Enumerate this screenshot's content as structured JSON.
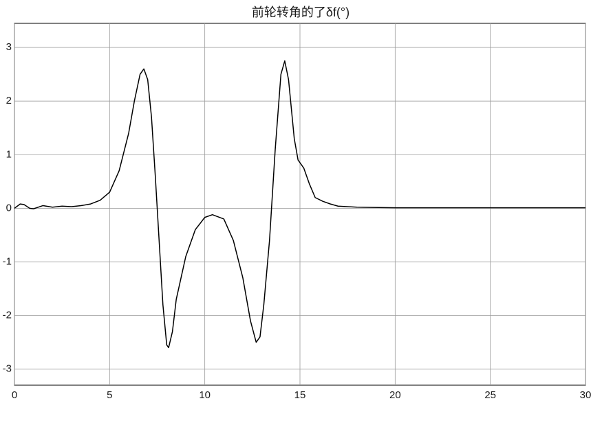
{
  "chart_data": {
    "type": "line",
    "title": "前轮转角的了δf(°)",
    "x": [
      0,
      0.3,
      0.5,
      0.8,
      1.0,
      1.5,
      2,
      2.5,
      3,
      3.5,
      4,
      4.5,
      5,
      5.5,
      6,
      6.3,
      6.6,
      6.8,
      7.0,
      7.2,
      7.4,
      7.6,
      7.8,
      8.0,
      8.1,
      8.3,
      8.5,
      9,
      9.5,
      10,
      10.4,
      11,
      11.5,
      12,
      12.4,
      12.7,
      12.9,
      13.1,
      13.4,
      13.7,
      14.0,
      14.2,
      14.4,
      14.7,
      14.9,
      15.2,
      15.5,
      15.8,
      16.2,
      16.6,
      17,
      18,
      20,
      25,
      30
    ],
    "series": [
      {
        "color": "#000000",
        "values": [
          0,
          0.08,
          0.07,
          0.0,
          -0.01,
          0.05,
          0.02,
          0.04,
          0.03,
          0.05,
          0.08,
          0.15,
          0.3,
          0.7,
          1.4,
          2.0,
          2.5,
          2.6,
          2.4,
          1.7,
          0.6,
          -0.6,
          -1.8,
          -2.55,
          -2.6,
          -2.3,
          -1.7,
          -0.9,
          -0.4,
          -0.17,
          -0.12,
          -0.2,
          -0.6,
          -1.3,
          -2.1,
          -2.5,
          -2.4,
          -1.8,
          -0.6,
          1.1,
          2.5,
          2.75,
          2.4,
          1.3,
          0.9,
          0.75,
          0.45,
          0.2,
          0.13,
          0.08,
          0.04,
          0.02,
          0.01,
          0.01,
          0.01
        ]
      }
    ],
    "xlim": [
      0,
      30
    ],
    "xticks": [
      0,
      5,
      10,
      15,
      20,
      25,
      30
    ],
    "ylim": [
      -3.3,
      3.45
    ],
    "yticks": [
      -3,
      -2,
      -1,
      0,
      1,
      2,
      3
    ],
    "grid": true
  }
}
